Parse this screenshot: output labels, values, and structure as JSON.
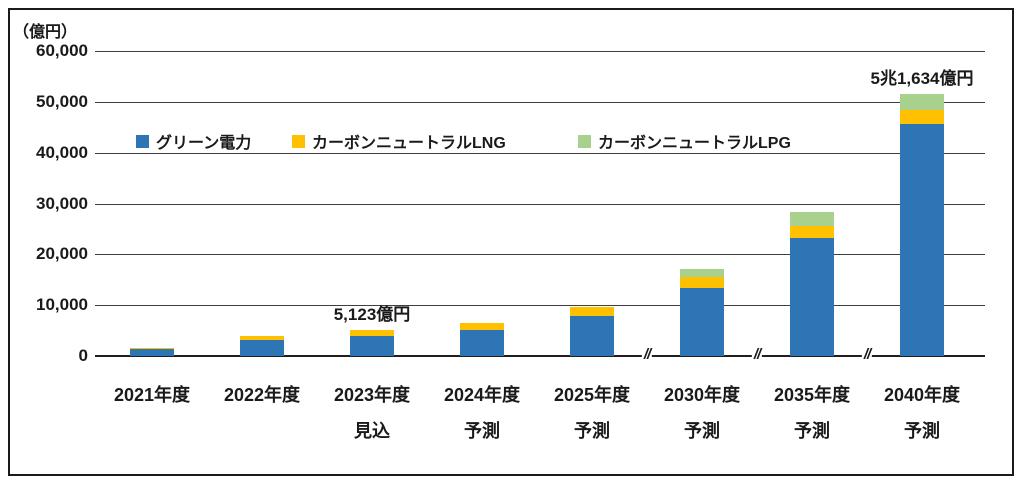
{
  "chart_data": {
    "type": "bar",
    "stacked": true,
    "unit_label": "（億円）",
    "categories": [
      "2021年度",
      "2022年度",
      "2023年度",
      "2024年度",
      "2025年度",
      "2030年度",
      "2035年度",
      "2040年度"
    ],
    "category_sublabels": [
      "",
      "",
      "見込",
      "予測",
      "予測",
      "予測",
      "予測",
      "予測"
    ],
    "series": [
      {
        "name": "グリーン電力",
        "color": "#2E75B6",
        "values": [
          1500,
          3200,
          3923,
          5200,
          7900,
          13400,
          23300,
          45634
        ]
      },
      {
        "name": "カーボンニュートラルLNG",
        "color": "#FFC000",
        "values": [
          100,
          700,
          1200,
          1200,
          1700,
          2100,
          2200,
          2800
        ]
      },
      {
        "name": "カーボンニュートラルLPG",
        "color": "#A9D18E",
        "values": [
          0,
          0,
          0,
          0,
          0,
          1700,
          2900,
          3200
        ]
      }
    ],
    "totals": [
      1600,
      3900,
      5123,
      6400,
      9600,
      17200,
      28400,
      51634
    ],
    "annotations": [
      {
        "category_index": 2,
        "text": "5,123億円"
      },
      {
        "category_index": 7,
        "text": "5兆1,634億円"
      }
    ],
    "yticks": [
      "60,000",
      "50,000",
      "40,000",
      "30,000",
      "20,000",
      "10,000",
      "0"
    ],
    "ylim": [
      0,
      60000
    ],
    "ytick_interval": 10000,
    "axis_breaks_after": [
      4,
      5,
      6
    ],
    "legend_position": "inside-top-left",
    "grid": true,
    "gridline_color": "#3f3f3f",
    "axis_color": "#1f1f1f"
  }
}
